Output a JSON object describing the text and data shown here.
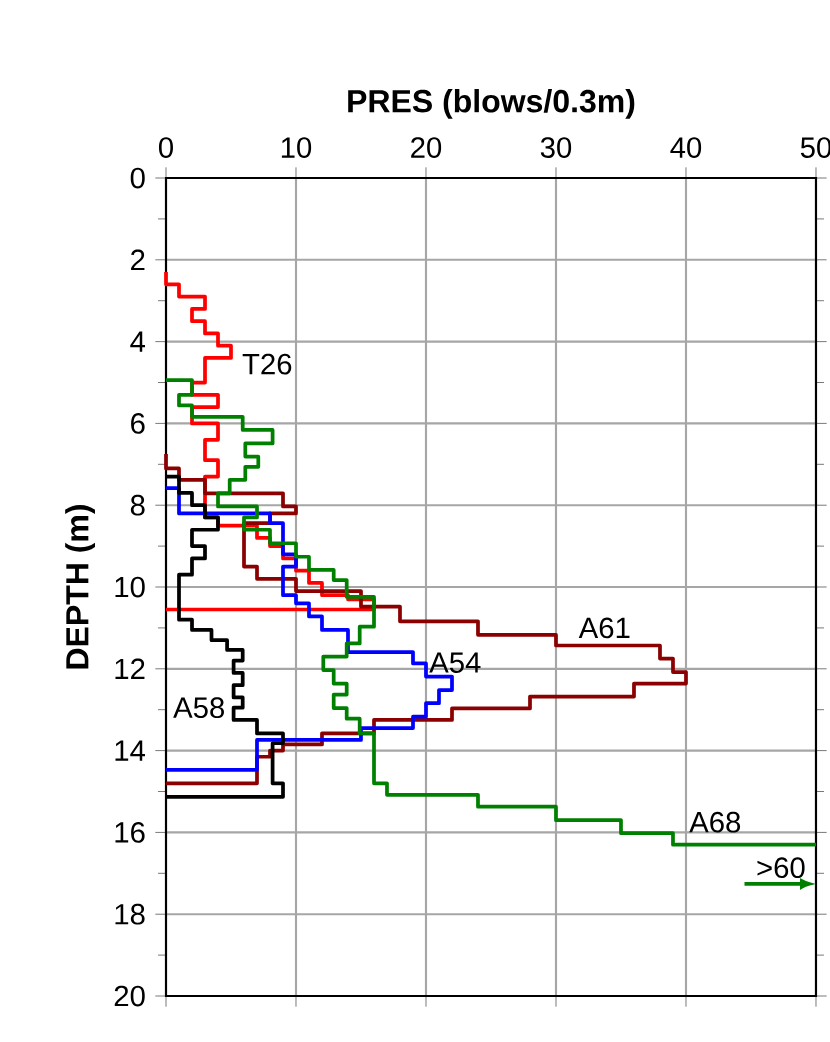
{
  "chart_data": {
    "type": "line",
    "xlabel": "PRES  (blows/0.3m)",
    "ylabel": "DEPTH (m)",
    "xlim": [
      0,
      50
    ],
    "xticks": [
      0,
      10,
      20,
      30,
      40,
      50
    ],
    "ylim": [
      20,
      0
    ],
    "yticks": [
      0,
      2,
      4,
      6,
      8,
      10,
      12,
      14,
      16,
      18,
      20
    ],
    "grid": true,
    "legend": false,
    "marker": "none",
    "line_style": "solid",
    "annotations": [
      ">60"
    ],
    "series": [
      {
        "name": "T26",
        "color": "#ff0000",
        "x": [
          0,
          0,
          1,
          1,
          3,
          3,
          2,
          2,
          3,
          3,
          4,
          4,
          5,
          5,
          3,
          3,
          2,
          2,
          4,
          4,
          2,
          2,
          4,
          4,
          3,
          3,
          4,
          4,
          3,
          3,
          4,
          4,
          7,
          7,
          8,
          8,
          9,
          9,
          10,
          10,
          11,
          11,
          12,
          12,
          14,
          14,
          16,
          16,
          0
        ],
        "values": [
          2.3,
          2.6,
          2.6,
          2.9,
          2.9,
          3.2,
          3.2,
          3.5,
          3.5,
          3.8,
          3.8,
          4.1,
          4.1,
          4.4,
          4.4,
          5.0,
          5.0,
          5.3,
          5.3,
          5.6,
          5.6,
          6.0,
          6.0,
          6.4,
          6.4,
          6.9,
          6.9,
          7.3,
          7.3,
          8.3,
          8.3,
          8.5,
          8.5,
          8.8,
          8.8,
          9.0,
          9.0,
          9.3,
          9.3,
          9.6,
          9.6,
          9.9,
          9.9,
          10.2,
          10.2,
          10.3,
          10.3,
          10.55,
          10.55
        ]
      },
      {
        "name": "A61",
        "color": "#8b0000",
        "x": [
          0,
          0,
          1,
          1,
          3,
          3,
          9,
          9,
          10,
          10,
          8,
          8,
          6,
          6,
          7,
          7,
          10,
          10,
          15,
          15,
          18,
          18,
          24,
          24,
          30,
          30,
          38,
          38,
          39,
          39,
          40,
          40,
          36,
          36,
          28,
          28,
          22,
          22,
          16,
          16,
          12,
          12,
          9,
          9,
          8,
          8,
          7,
          7,
          0
        ],
        "values": [
          6.75,
          7.1,
          7.1,
          7.38,
          7.38,
          7.71,
          7.71,
          8.03,
          8.03,
          8.2,
          8.2,
          8.44,
          8.44,
          9.5,
          9.5,
          9.8,
          9.8,
          10.1,
          10.1,
          10.48,
          10.48,
          10.84,
          10.84,
          11.17,
          11.17,
          11.43,
          11.43,
          11.75,
          11.75,
          12.08,
          12.08,
          12.36,
          12.36,
          12.68,
          12.68,
          12.97,
          12.97,
          13.25,
          13.25,
          13.58,
          13.58,
          13.85,
          13.85,
          14.0,
          14.0,
          14.15,
          14.15,
          14.8,
          14.8
        ]
      },
      {
        "name": "A54",
        "color": "#0000ff",
        "x": [
          0,
          1,
          1,
          8,
          8,
          9,
          9,
          10,
          10,
          9,
          9,
          10,
          10,
          11,
          11,
          12,
          12,
          14,
          14,
          19,
          19,
          20,
          20,
          22,
          22,
          21,
          21,
          20,
          20,
          19,
          19,
          15,
          15,
          7,
          7,
          0
        ],
        "values": [
          7.58,
          7.58,
          8.2,
          8.2,
          8.44,
          8.44,
          9.2,
          9.2,
          9.5,
          9.5,
          10.2,
          10.2,
          10.4,
          10.4,
          10.72,
          10.72,
          11.05,
          11.05,
          11.59,
          11.59,
          11.87,
          11.87,
          12.19,
          12.19,
          12.52,
          12.52,
          12.84,
          12.84,
          13.17,
          13.17,
          13.45,
          13.45,
          13.74,
          13.74,
          14.47,
          14.47
        ]
      },
      {
        "name": "A58",
        "color": "#000000",
        "x": [
          0,
          1,
          1,
          2,
          2,
          3,
          3,
          4,
          4,
          2,
          2,
          3,
          3,
          2,
          2,
          1,
          1,
          2,
          2,
          3.5,
          3.5,
          4.7,
          4.7,
          5.9,
          5.9,
          5.2,
          5.2,
          5.9,
          5.9,
          5.2,
          5.2,
          5.9,
          5.9,
          5.2,
          5.2,
          7,
          7,
          9,
          9,
          8.2,
          8.2,
          9,
          9,
          0
        ],
        "values": [
          7.3,
          7.3,
          7.7,
          7.7,
          8.0,
          8.0,
          8.3,
          8.3,
          8.6,
          8.6,
          9.0,
          9.0,
          9.3,
          9.3,
          9.7,
          9.7,
          10.8,
          10.8,
          11.05,
          11.05,
          11.3,
          11.3,
          11.54,
          11.54,
          11.8,
          11.8,
          12.1,
          12.1,
          12.4,
          12.4,
          12.7,
          12.7,
          12.95,
          12.95,
          13.25,
          13.25,
          13.58,
          13.58,
          13.82,
          13.82,
          14.8,
          14.8,
          15.13,
          15.13
        ]
      },
      {
        "name": "A68",
        "color": "#008000",
        "x": [
          0,
          2,
          2,
          1,
          1,
          2,
          2,
          5.9,
          5.9,
          8.2,
          8.2,
          6.1,
          6.1,
          7.1,
          7.1,
          6.1,
          6.1,
          4.9,
          4.9,
          4,
          4,
          7,
          7,
          6,
          6,
          8,
          8,
          10,
          10,
          11,
          11,
          12.9,
          12.9,
          13.9,
          13.9,
          16,
          16,
          14.9,
          14.9,
          13.9,
          13.9,
          12.1,
          12.1,
          12.9,
          12.9,
          13.9,
          13.9,
          12.9,
          12.9,
          13.9,
          13.9,
          14.9,
          14.9,
          16,
          16,
          17,
          17,
          24,
          24,
          30,
          30,
          35,
          35,
          39,
          39,
          50
        ],
        "values": [
          4.94,
          4.94,
          5.3,
          5.3,
          5.56,
          5.56,
          5.84,
          5.84,
          6.16,
          6.16,
          6.49,
          6.49,
          6.81,
          6.81,
          7.06,
          7.06,
          7.38,
          7.38,
          7.71,
          7.71,
          8.03,
          8.03,
          8.3,
          8.3,
          8.6,
          8.6,
          8.93,
          8.93,
          9.26,
          9.26,
          9.58,
          9.58,
          9.83,
          9.83,
          10.24,
          10.24,
          10.97,
          10.97,
          11.38,
          11.38,
          11.7,
          11.7,
          12.03,
          12.03,
          12.36,
          12.36,
          12.63,
          12.63,
          12.96,
          12.96,
          13.22,
          13.22,
          13.58,
          13.58,
          14.8,
          14.8,
          15.08,
          15.08,
          15.37,
          15.37,
          15.7,
          15.7,
          16.02,
          16.02,
          16.3,
          16.3
        ]
      }
    ]
  }
}
